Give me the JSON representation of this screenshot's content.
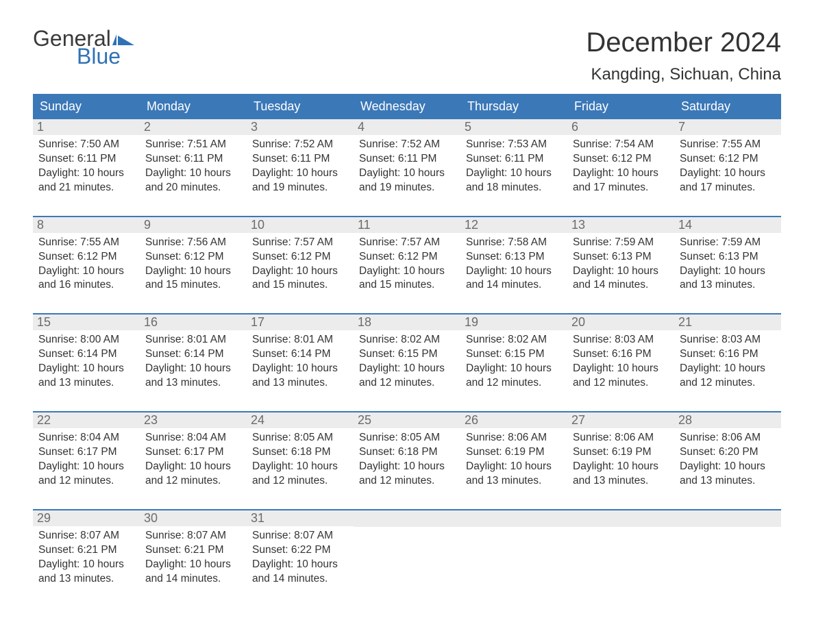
{
  "logo": {
    "text1": "General",
    "text2": "Blue",
    "flag_color": "#2f72b6",
    "text1_color": "#3a3a3a"
  },
  "title": "December 2024",
  "location": "Kangding, Sichuan, China",
  "header_bg": "#3b78b8",
  "header_fg": "#ffffff",
  "daynum_bg": "#ececec",
  "daynum_fg": "#6b6b6b",
  "week_border": "#3b78b8",
  "body_fg": "#333333",
  "font_family": "Arial",
  "title_fontsize": 40,
  "location_fontsize": 24,
  "header_fontsize": 18,
  "body_fontsize": 15.5,
  "day_names": [
    "Sunday",
    "Monday",
    "Tuesday",
    "Wednesday",
    "Thursday",
    "Friday",
    "Saturday"
  ],
  "weeks": [
    [
      {
        "n": "1",
        "sunrise": "7:50 AM",
        "sunset": "6:11 PM",
        "dl": "10 hours and 21 minutes."
      },
      {
        "n": "2",
        "sunrise": "7:51 AM",
        "sunset": "6:11 PM",
        "dl": "10 hours and 20 minutes."
      },
      {
        "n": "3",
        "sunrise": "7:52 AM",
        "sunset": "6:11 PM",
        "dl": "10 hours and 19 minutes."
      },
      {
        "n": "4",
        "sunrise": "7:52 AM",
        "sunset": "6:11 PM",
        "dl": "10 hours and 19 minutes."
      },
      {
        "n": "5",
        "sunrise": "7:53 AM",
        "sunset": "6:11 PM",
        "dl": "10 hours and 18 minutes."
      },
      {
        "n": "6",
        "sunrise": "7:54 AM",
        "sunset": "6:12 PM",
        "dl": "10 hours and 17 minutes."
      },
      {
        "n": "7",
        "sunrise": "7:55 AM",
        "sunset": "6:12 PM",
        "dl": "10 hours and 17 minutes."
      }
    ],
    [
      {
        "n": "8",
        "sunrise": "7:55 AM",
        "sunset": "6:12 PM",
        "dl": "10 hours and 16 minutes."
      },
      {
        "n": "9",
        "sunrise": "7:56 AM",
        "sunset": "6:12 PM",
        "dl": "10 hours and 15 minutes."
      },
      {
        "n": "10",
        "sunrise": "7:57 AM",
        "sunset": "6:12 PM",
        "dl": "10 hours and 15 minutes."
      },
      {
        "n": "11",
        "sunrise": "7:57 AM",
        "sunset": "6:12 PM",
        "dl": "10 hours and 15 minutes."
      },
      {
        "n": "12",
        "sunrise": "7:58 AM",
        "sunset": "6:13 PM",
        "dl": "10 hours and 14 minutes."
      },
      {
        "n": "13",
        "sunrise": "7:59 AM",
        "sunset": "6:13 PM",
        "dl": "10 hours and 14 minutes."
      },
      {
        "n": "14",
        "sunrise": "7:59 AM",
        "sunset": "6:13 PM",
        "dl": "10 hours and 13 minutes."
      }
    ],
    [
      {
        "n": "15",
        "sunrise": "8:00 AM",
        "sunset": "6:14 PM",
        "dl": "10 hours and 13 minutes."
      },
      {
        "n": "16",
        "sunrise": "8:01 AM",
        "sunset": "6:14 PM",
        "dl": "10 hours and 13 minutes."
      },
      {
        "n": "17",
        "sunrise": "8:01 AM",
        "sunset": "6:14 PM",
        "dl": "10 hours and 13 minutes."
      },
      {
        "n": "18",
        "sunrise": "8:02 AM",
        "sunset": "6:15 PM",
        "dl": "10 hours and 12 minutes."
      },
      {
        "n": "19",
        "sunrise": "8:02 AM",
        "sunset": "6:15 PM",
        "dl": "10 hours and 12 minutes."
      },
      {
        "n": "20",
        "sunrise": "8:03 AM",
        "sunset": "6:16 PM",
        "dl": "10 hours and 12 minutes."
      },
      {
        "n": "21",
        "sunrise": "8:03 AM",
        "sunset": "6:16 PM",
        "dl": "10 hours and 12 minutes."
      }
    ],
    [
      {
        "n": "22",
        "sunrise": "8:04 AM",
        "sunset": "6:17 PM",
        "dl": "10 hours and 12 minutes."
      },
      {
        "n": "23",
        "sunrise": "8:04 AM",
        "sunset": "6:17 PM",
        "dl": "10 hours and 12 minutes."
      },
      {
        "n": "24",
        "sunrise": "8:05 AM",
        "sunset": "6:18 PM",
        "dl": "10 hours and 12 minutes."
      },
      {
        "n": "25",
        "sunrise": "8:05 AM",
        "sunset": "6:18 PM",
        "dl": "10 hours and 12 minutes."
      },
      {
        "n": "26",
        "sunrise": "8:06 AM",
        "sunset": "6:19 PM",
        "dl": "10 hours and 13 minutes."
      },
      {
        "n": "27",
        "sunrise": "8:06 AM",
        "sunset": "6:19 PM",
        "dl": "10 hours and 13 minutes."
      },
      {
        "n": "28",
        "sunrise": "8:06 AM",
        "sunset": "6:20 PM",
        "dl": "10 hours and 13 minutes."
      }
    ],
    [
      {
        "n": "29",
        "sunrise": "8:07 AM",
        "sunset": "6:21 PM",
        "dl": "10 hours and 13 minutes."
      },
      {
        "n": "30",
        "sunrise": "8:07 AM",
        "sunset": "6:21 PM",
        "dl": "10 hours and 14 minutes."
      },
      {
        "n": "31",
        "sunrise": "8:07 AM",
        "sunset": "6:22 PM",
        "dl": "10 hours and 14 minutes."
      },
      null,
      null,
      null,
      null
    ]
  ],
  "labels": {
    "sunrise": "Sunrise: ",
    "sunset": "Sunset: ",
    "daylight": "Daylight: "
  }
}
